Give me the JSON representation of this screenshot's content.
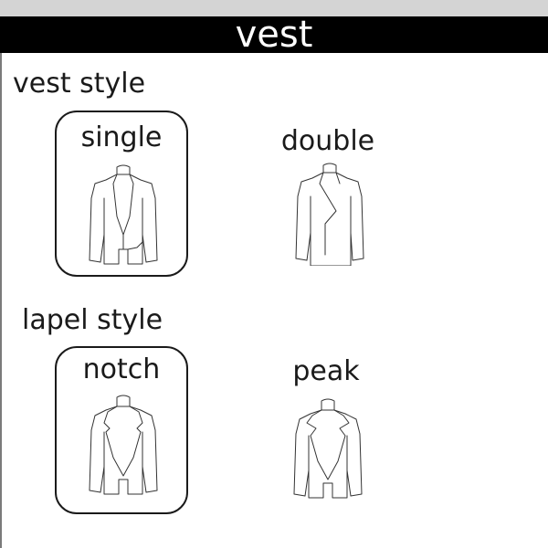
{
  "title": "vest",
  "vest_style": {
    "label": "vest style",
    "options": [
      {
        "label": "single",
        "selected": true
      },
      {
        "label": "double",
        "selected": false
      }
    ]
  },
  "lapel_style": {
    "label": "lapel style",
    "options": [
      {
        "label": "notch",
        "selected": true
      },
      {
        "label": "peak",
        "selected": false
      }
    ]
  }
}
